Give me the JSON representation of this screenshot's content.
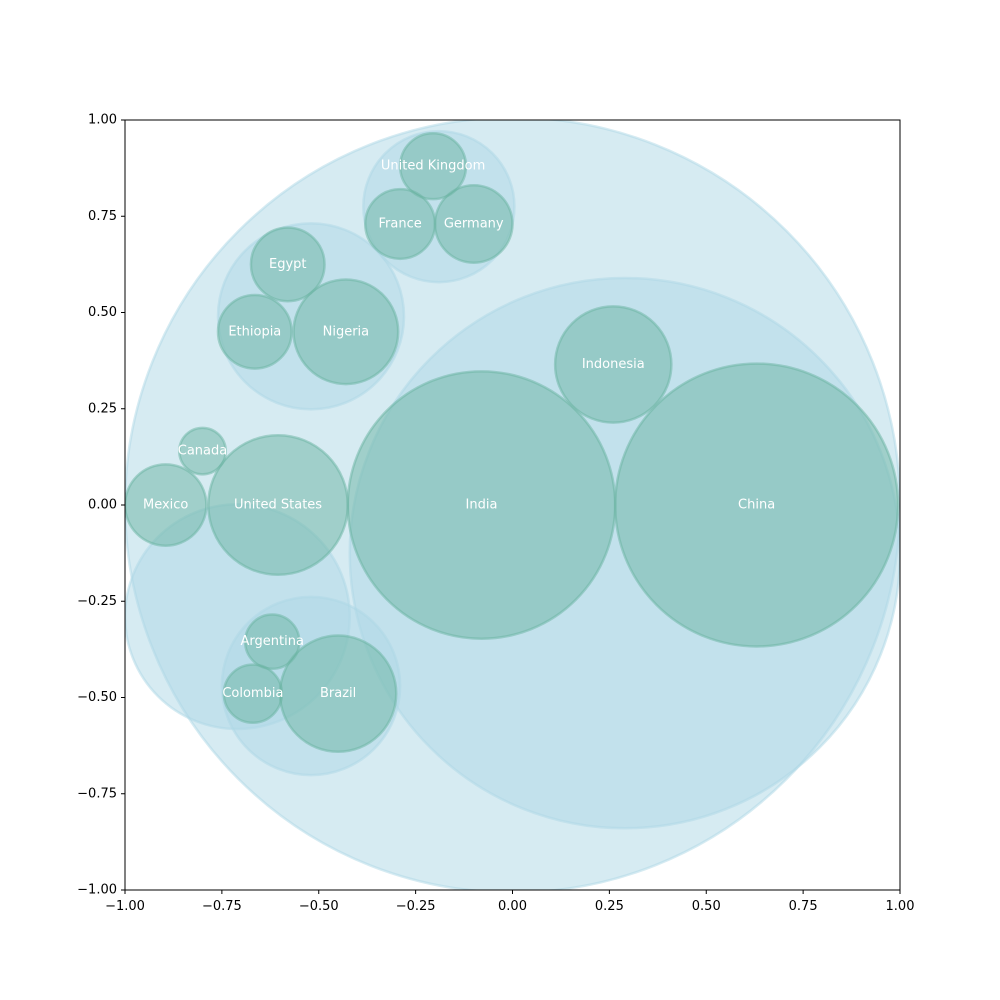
{
  "chart_data": {
    "type": "circle-packing",
    "title": "",
    "xlabel": "",
    "ylabel": "",
    "xlim": [
      -1,
      1
    ],
    "ylim": [
      -1,
      1
    ],
    "grid": false,
    "legend": "none",
    "x_ticks": [
      -1.0,
      -0.75,
      -0.5,
      -0.25,
      0.0,
      0.25,
      0.5,
      0.75,
      1.0
    ],
    "x_tick_labels": [
      "−1.00",
      "−0.75",
      "−0.50",
      "−0.25",
      "0.00",
      "0.25",
      "0.50",
      "0.75",
      "1.00"
    ],
    "y_ticks": [
      1.0,
      0.75,
      0.5,
      0.25,
      0.0,
      -0.25,
      -0.5,
      -0.75,
      -1.0
    ],
    "y_tick_labels": [
      "1.00",
      "0.75",
      "0.50",
      "0.25",
      "0.00",
      "−0.25",
      "−0.50",
      "−0.75",
      "−1.00"
    ],
    "colors": {
      "group_fill": "#add8e6",
      "group_edge": "#add8e6",
      "leaf_fill": "#69b3a2",
      "leaf_edge": "#69b3a2",
      "label": "#ffffff",
      "axis": "#000000"
    },
    "groups": [
      {
        "x": 0.0,
        "y": 0.0,
        "r": 1.0
      },
      {
        "x": 0.29,
        "y": -0.125,
        "r": 0.71
      },
      {
        "x": -0.52,
        "y": 0.49,
        "r": 0.24
      },
      {
        "x": -0.71,
        "y": -0.29,
        "r": 0.29
      },
      {
        "x": -0.52,
        "y": -0.47,
        "r": 0.23
      },
      {
        "x": -0.19,
        "y": 0.775,
        "r": 0.195
      }
    ],
    "leaves": [
      {
        "label": "China",
        "x": 0.63,
        "y": 0.0,
        "r": 0.365
      },
      {
        "label": "India",
        "x": -0.08,
        "y": 0.0,
        "r": 0.345
      },
      {
        "label": "Indonesia",
        "x": 0.26,
        "y": 0.365,
        "r": 0.15
      },
      {
        "label": "United States",
        "x": -0.605,
        "y": 0.0,
        "r": 0.18
      },
      {
        "label": "Mexico",
        "x": -0.895,
        "y": 0.0,
        "r": 0.105
      },
      {
        "label": "Canada",
        "x": -0.8,
        "y": 0.14,
        "r": 0.06
      },
      {
        "label": "Nigeria",
        "x": -0.43,
        "y": 0.45,
        "r": 0.135
      },
      {
        "label": "Ethiopia",
        "x": -0.665,
        "y": 0.45,
        "r": 0.095
      },
      {
        "label": "Egypt",
        "x": -0.58,
        "y": 0.625,
        "r": 0.095
      },
      {
        "label": "Brazil",
        "x": -0.45,
        "y": -0.49,
        "r": 0.15
      },
      {
        "label": "Colombia",
        "x": -0.67,
        "y": -0.49,
        "r": 0.075
      },
      {
        "label": "Argentina",
        "x": -0.62,
        "y": -0.355,
        "r": 0.07
      },
      {
        "label": "United Kingdom",
        "x": -0.205,
        "y": 0.88,
        "r": 0.085
      },
      {
        "label": "France",
        "x": -0.29,
        "y": 0.73,
        "r": 0.09
      },
      {
        "label": "Germany",
        "x": -0.1,
        "y": 0.73,
        "r": 0.1
      }
    ]
  }
}
